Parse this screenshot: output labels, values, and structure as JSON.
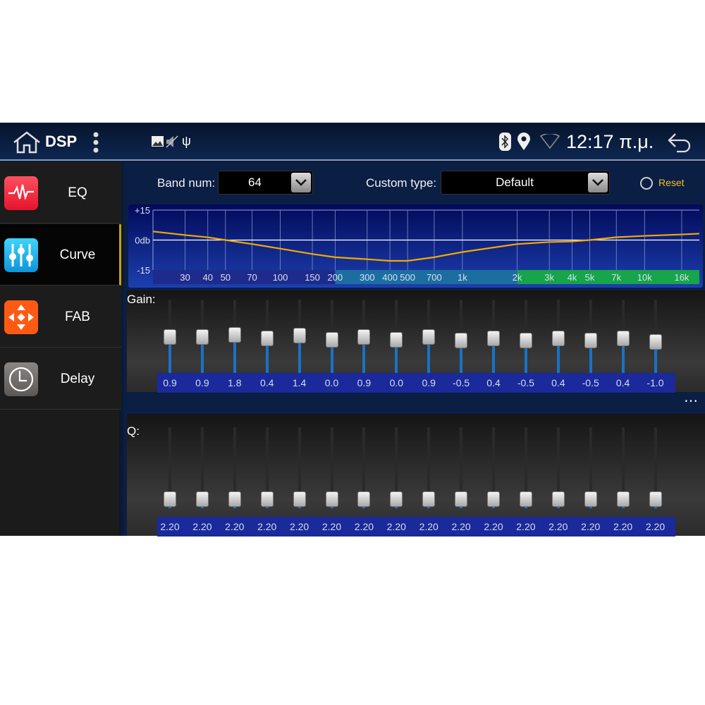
{
  "status_bar": {
    "title": "DSP",
    "time": "12:17 π.μ.",
    "icons": [
      "home-icon",
      "more-vert-icon",
      "image-icon",
      "mute-icon",
      "usb-icon",
      "bluetooth-icon",
      "location-icon",
      "wifi-icon",
      "back-icon"
    ]
  },
  "sidebar": {
    "items": [
      {
        "label": "EQ",
        "icon": "eq-wave-icon",
        "color": "#f0303f",
        "selected": false
      },
      {
        "label": "Curve",
        "icon": "sliders-icon",
        "color": "#19b6ec",
        "selected": true
      },
      {
        "label": "FAB",
        "icon": "fader-balance-icon",
        "color": "#ff5a14",
        "selected": false
      },
      {
        "label": "Delay",
        "icon": "clock-icon",
        "color": "#6e6a68",
        "selected": false
      }
    ]
  },
  "controls": {
    "band_num_label": "Band num:",
    "band_num_value": "64",
    "custom_type_label": "Custom type:",
    "custom_type_value": "Default",
    "reset_label": "Reset",
    "reset_color": "#f0c419"
  },
  "chart_data": {
    "type": "line",
    "ylim": [
      -15,
      15
    ],
    "xlim": [
      20,
      20000
    ],
    "xscale": "log",
    "y_tick_labels": [
      "+15",
      "0db",
      "-15"
    ],
    "x_tick_labels": [
      "30",
      "40",
      "50",
      "70",
      "100",
      "150",
      "200",
      "300",
      "400",
      "500",
      "700",
      "1k",
      "2k",
      "3k",
      "4k",
      "5k",
      "7k",
      "10k",
      "16k"
    ],
    "x_tick_values": [
      30,
      40,
      50,
      70,
      100,
      150,
      200,
      300,
      400,
      500,
      700,
      1000,
      2000,
      3000,
      4000,
      5000,
      7000,
      10000,
      16000
    ],
    "series": [
      {
        "color": "#f5a800",
        "x": [
          20,
          30,
          40,
          50,
          70,
          100,
          150,
          200,
          300,
          400,
          500,
          700,
          1000,
          2000,
          3000,
          4000,
          5000,
          7000,
          10000,
          16000,
          20000
        ],
        "y": [
          4.3,
          2.5,
          1.4,
          0,
          -2,
          -4.3,
          -7,
          -8.6,
          -9.6,
          -10.4,
          -10.4,
          -8.6,
          -6,
          -2,
          -1,
          -0.7,
          0,
          1.4,
          2.1,
          2.8,
          3.2
        ]
      }
    ],
    "grid": true
  },
  "gain": {
    "label": "Gain:",
    "values": [
      "0.9",
      "0.9",
      "1.8",
      "0.4",
      "1.4",
      "0.0",
      "0.9",
      "0.0",
      "0.9",
      "-0.5",
      "0.4",
      "-0.5",
      "0.4",
      "-0.5",
      "0.4",
      "-1.0"
    ],
    "more": "⋯"
  },
  "q": {
    "label": "Q:",
    "values": [
      "2.20",
      "2.20",
      "2.20",
      "2.20",
      "2.20",
      "2.20",
      "2.20",
      "2.20",
      "2.20",
      "2.20",
      "2.20",
      "2.20",
      "2.20",
      "2.20",
      "2.20",
      "2.20"
    ]
  }
}
